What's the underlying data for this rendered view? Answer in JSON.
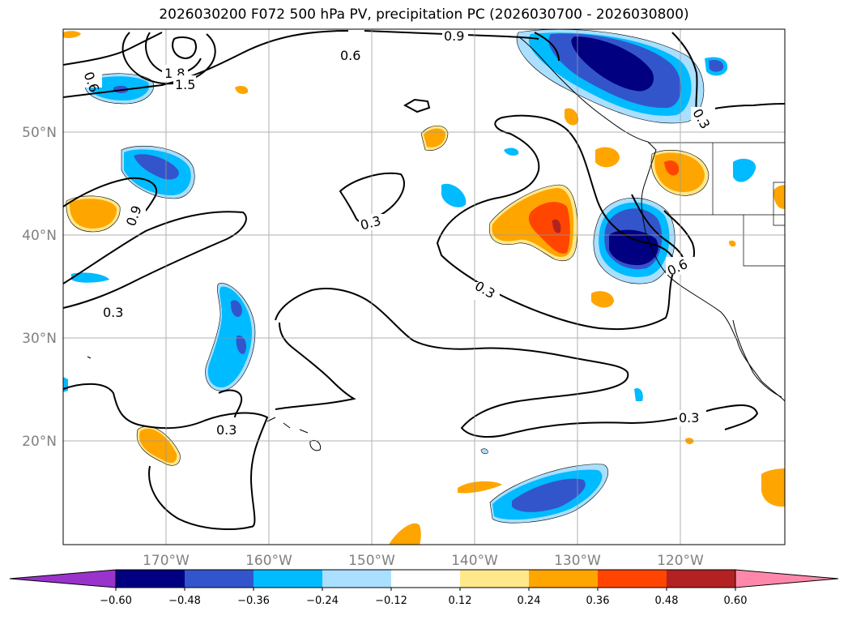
{
  "title": "2026030200 F072 500 hPa PV, precipitation PC (2026030700 - 2026030800)",
  "lat_labels": [
    "50°N",
    "40°N",
    "30°N",
    "20°N"
  ],
  "lon_labels": [
    "170°W",
    "160°W",
    "150°W",
    "140°W",
    "130°W",
    "120°W"
  ],
  "contour_labels": [
    "1.8",
    "1.5",
    "0.9",
    "0.6",
    "0.6",
    "0.9",
    "0.3",
    "0.3",
    "0.3",
    "0.3",
    "0.3",
    "0.6",
    "0.3",
    "0.3"
  ],
  "colorbar": {
    "labels": [
      "−0.60",
      "−0.48",
      "−0.36",
      "−0.24",
      "−0.12",
      "0.12",
      "0.24",
      "0.36",
      "0.48",
      "0.60"
    ],
    "colors": [
      "#9933cc",
      "#000080",
      "#3355cc",
      "#00bbff",
      "#aadfff",
      "#ffffff",
      "#ffe88c",
      "#ffa500",
      "#ff4500",
      "#b22222",
      "#ff88aa"
    ]
  },
  "fill_colors": {
    "neg_light": "#aadfff",
    "neg_mid": "#00bbff",
    "neg_strong": "#3355cc",
    "neg_max": "#000080",
    "pos_light": "#ffe88c",
    "pos_mid": "#ffa500",
    "pos_strong": "#ff4500",
    "pos_max": "#b22222"
  }
}
